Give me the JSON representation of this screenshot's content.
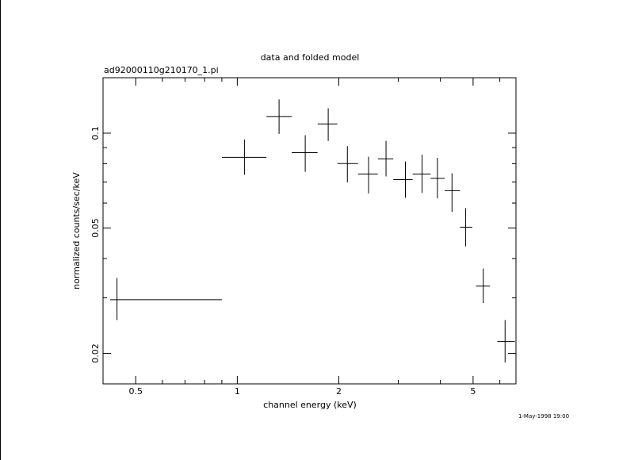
{
  "chart_data": {
    "type": "scatter",
    "title": "data and folded model",
    "subtitle": "ad92000110g210170_1.pi",
    "xlabel": "channel energy (keV)",
    "ylabel": "normalized counts/sec/keV",
    "timestamp": "1-May-1998 19:00",
    "x_scale": "log",
    "y_scale": "log",
    "xlim": [
      0.4,
      6.7
    ],
    "ylim": [
      0.016,
      0.15
    ],
    "x_ticks": [
      {
        "value": 0.5,
        "label": "0.5"
      },
      {
        "value": 1,
        "label": "1"
      },
      {
        "value": 2,
        "label": "2"
      },
      {
        "value": 5,
        "label": "5"
      }
    ],
    "y_ticks": [
      {
        "value": 0.02,
        "label": "0.02"
      },
      {
        "value": 0.05,
        "label": "0.05"
      },
      {
        "value": 0.1,
        "label": "0.1"
      }
    ],
    "grid": false,
    "legend": "none",
    "series": [
      {
        "points": [
          {
            "x": 0.44,
            "xlo": 0.42,
            "xhi": 0.9,
            "y": 0.0296,
            "ylo": 0.0255,
            "yhi": 0.0347
          },
          {
            "x": 1.05,
            "xlo": 0.9,
            "xhi": 1.22,
            "y": 0.0838,
            "ylo": 0.0738,
            "yhi": 0.0955
          },
          {
            "x": 1.33,
            "xlo": 1.22,
            "xhi": 1.45,
            "y": 0.113,
            "ylo": 0.0995,
            "yhi": 0.128
          },
          {
            "x": 1.59,
            "xlo": 1.45,
            "xhi": 1.73,
            "y": 0.0867,
            "ylo": 0.0754,
            "yhi": 0.0985
          },
          {
            "x": 1.86,
            "xlo": 1.73,
            "xhi": 1.98,
            "y": 0.107,
            "ylo": 0.0945,
            "yhi": 0.12
          },
          {
            "x": 2.12,
            "xlo": 1.98,
            "xhi": 2.28,
            "y": 0.0801,
            "ylo": 0.0698,
            "yhi": 0.091
          },
          {
            "x": 2.45,
            "xlo": 2.28,
            "xhi": 2.61,
            "y": 0.0742,
            "ylo": 0.0644,
            "yhi": 0.0842
          },
          {
            "x": 2.76,
            "xlo": 2.61,
            "xhi": 2.9,
            "y": 0.0829,
            "ylo": 0.0729,
            "yhi": 0.0945
          },
          {
            "x": 3.15,
            "xlo": 2.9,
            "xhi": 3.31,
            "y": 0.0712,
            "ylo": 0.0624,
            "yhi": 0.0813
          },
          {
            "x": 3.53,
            "xlo": 3.31,
            "xhi": 3.74,
            "y": 0.0742,
            "ylo": 0.0646,
            "yhi": 0.0855
          },
          {
            "x": 3.92,
            "xlo": 3.74,
            "xhi": 4.12,
            "y": 0.0719,
            "ylo": 0.0621,
            "yhi": 0.0835
          },
          {
            "x": 4.33,
            "xlo": 4.12,
            "xhi": 4.57,
            "y": 0.0657,
            "ylo": 0.0562,
            "yhi": 0.0746
          },
          {
            "x": 4.75,
            "xlo": 4.57,
            "xhi": 4.97,
            "y": 0.0503,
            "ylo": 0.0437,
            "yhi": 0.0578
          },
          {
            "x": 5.36,
            "xlo": 5.1,
            "xhi": 5.61,
            "y": 0.0327,
            "ylo": 0.0289,
            "yhi": 0.0372
          },
          {
            "x": 6.22,
            "xlo": 5.9,
            "xhi": 6.65,
            "y": 0.0218,
            "ylo": 0.0187,
            "yhi": 0.0255
          }
        ]
      }
    ]
  }
}
